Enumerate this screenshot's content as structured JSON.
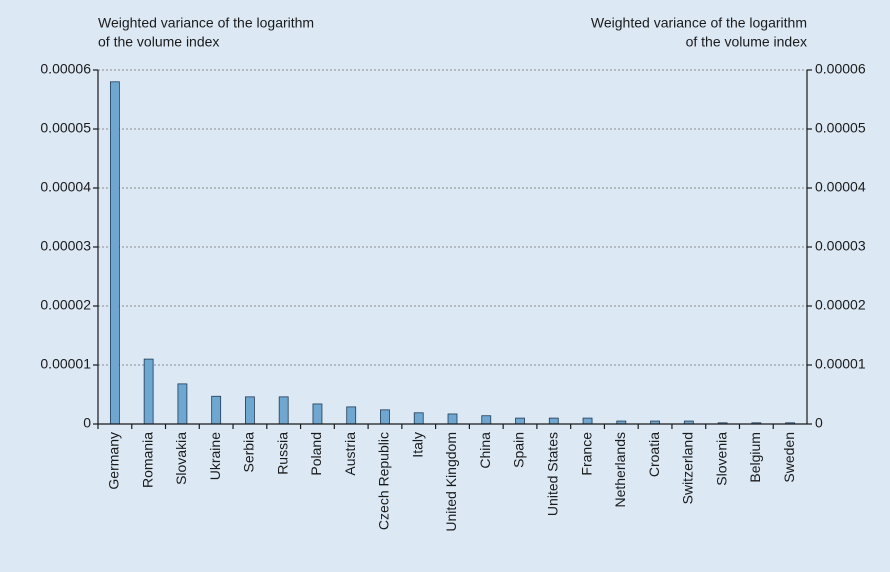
{
  "chart_data": {
    "type": "bar",
    "y_label": [
      "Weighted variance of the logarithm",
      "of the volume index"
    ],
    "y2_label": [
      "Weighted variance of the logarithm",
      "of the volume index"
    ],
    "categories": [
      "Germany",
      "Romania",
      "Slovakia",
      "Ukraine",
      "Serbia",
      "Russia",
      "Poland",
      "Austria",
      "Czech Republic",
      "Italy",
      "United Kingdom",
      "China",
      "Spain",
      "United States",
      "France",
      "Netherlands",
      "Croatia",
      "Switzerland",
      "Slovenia",
      "Belgium",
      "Sweden"
    ],
    "values": [
      5.8e-05,
      1.1e-05,
      6.8e-06,
      4.7e-06,
      4.6e-06,
      4.6e-06,
      3.4e-06,
      2.9e-06,
      2.4e-06,
      1.9e-06,
      1.7e-06,
      1.4e-06,
      1e-06,
      1e-06,
      1e-06,
      5e-07,
      5e-07,
      5e-07,
      2e-07,
      2e-07,
      2e-07
    ],
    "color": "#6fa7d1",
    "ylim": [
      0,
      6e-05
    ],
    "yticks": [
      0,
      1e-05,
      2e-05,
      3e-05,
      4e-05,
      5e-05,
      6e-05
    ],
    "y2lim": [
      0,
      6e-05
    ],
    "y2ticks": [
      0,
      1e-05,
      2e-05,
      3e-05,
      4e-05,
      5e-05,
      6e-05
    ],
    "grid": true
  }
}
